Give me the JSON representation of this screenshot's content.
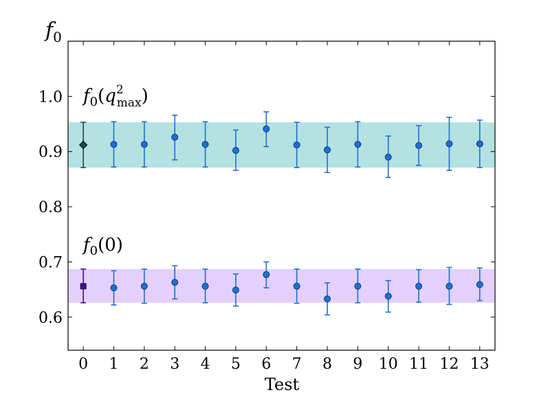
{
  "chart_data": {
    "type": "scatter",
    "xlabel": "Test",
    "ylabel_main": "f",
    "ylabel_sub": "0",
    "xlim": [
      -0.5,
      13.5
    ],
    "ylim": [
      0.54,
      1.1
    ],
    "x_ticks": [
      0,
      1,
      2,
      3,
      4,
      5,
      6,
      7,
      8,
      9,
      10,
      11,
      12,
      13
    ],
    "y_ticks": [
      0.6,
      0.7,
      0.8,
      0.9,
      1.0
    ],
    "y_tick_labels": [
      "0.6",
      "0.7",
      "0.8",
      "0.9",
      "1.0"
    ],
    "grid": false,
    "annotations": {
      "qmax": {
        "prefix": "f",
        "sub": "0",
        "open": "(",
        "q": "q",
        "sup": "2",
        "subtext": "max",
        "close": ")"
      },
      "zero": {
        "prefix": "f",
        "sub": "0",
        "text": "(0)"
      }
    },
    "bands": [
      {
        "center": 0.912,
        "low": 0.871,
        "high": 0.953,
        "color": "#6ac3c3"
      },
      {
        "center": 0.656,
        "low": 0.626,
        "high": 0.687,
        "color": "#c9a2fa"
      }
    ],
    "series": [
      {
        "marker": "diamond",
        "color": "#1a4a4a",
        "x": [
          0
        ],
        "y": [
          0.912
        ],
        "err_low": [
          0.871
        ],
        "err_high": [
          0.953
        ]
      },
      {
        "marker": "circle",
        "color": "#1f6fd1",
        "x": [
          1,
          2,
          3,
          4,
          5,
          6,
          7,
          8,
          9,
          10,
          11,
          12,
          13
        ],
        "y": [
          0.913,
          0.913,
          0.926,
          0.913,
          0.902,
          0.941,
          0.912,
          0.903,
          0.913,
          0.89,
          0.911,
          0.914,
          0.914
        ],
        "err_low": [
          0.872,
          0.872,
          0.885,
          0.872,
          0.866,
          0.909,
          0.871,
          0.862,
          0.872,
          0.853,
          0.875,
          0.866,
          0.871
        ],
        "err_high": [
          0.954,
          0.954,
          0.966,
          0.954,
          0.939,
          0.972,
          0.953,
          0.944,
          0.954,
          0.928,
          0.947,
          0.962,
          0.957
        ]
      },
      {
        "marker": "square",
        "color": "#3a0f9e",
        "x": [
          0
        ],
        "y": [
          0.656
        ],
        "err_low": [
          0.626
        ],
        "err_high": [
          0.687
        ]
      },
      {
        "marker": "circle",
        "color": "#1f6fd1",
        "x": [
          1,
          2,
          3,
          4,
          5,
          6,
          7,
          8,
          9,
          10,
          11,
          12,
          13
        ],
        "y": [
          0.653,
          0.656,
          0.663,
          0.656,
          0.649,
          0.677,
          0.656,
          0.633,
          0.656,
          0.638,
          0.656,
          0.656,
          0.659
        ],
        "err_low": [
          0.622,
          0.625,
          0.633,
          0.626,
          0.62,
          0.653,
          0.625,
          0.604,
          0.626,
          0.609,
          0.627,
          0.623,
          0.63
        ],
        "err_high": [
          0.684,
          0.687,
          0.693,
          0.687,
          0.678,
          0.7,
          0.687,
          0.662,
          0.687,
          0.666,
          0.686,
          0.69,
          0.689
        ]
      }
    ]
  }
}
